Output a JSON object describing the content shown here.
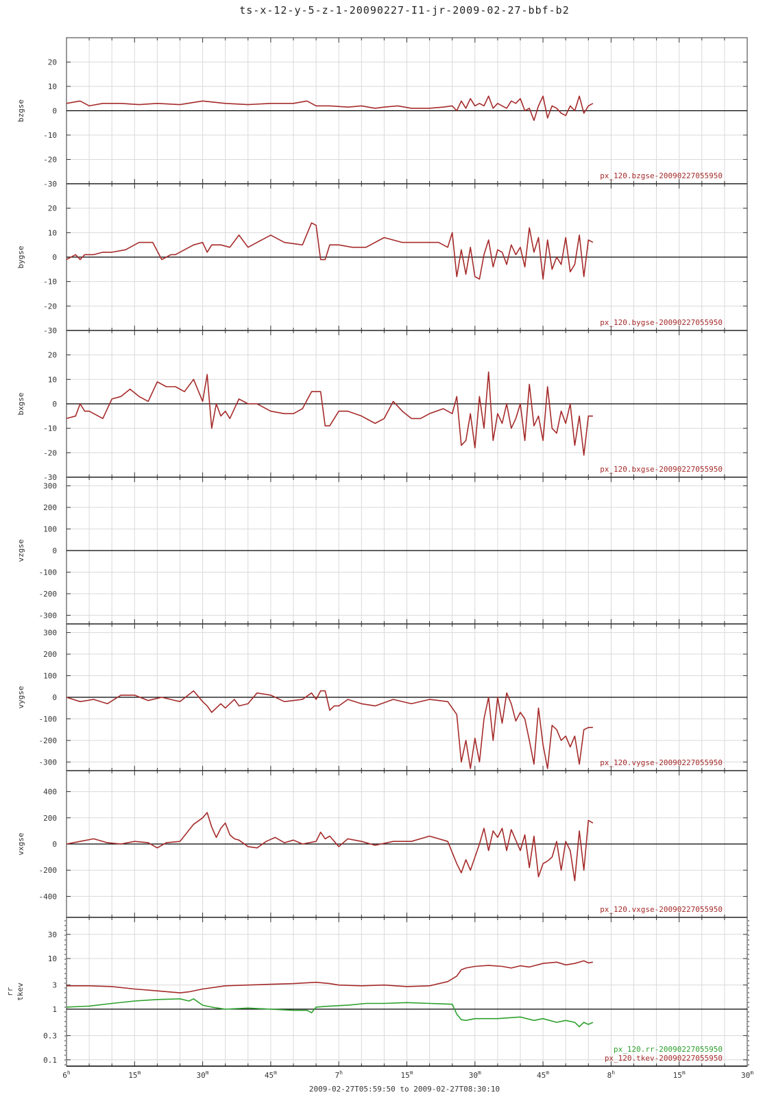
{
  "title": "ts-x-12-y-5-z-1-20090227-I1-jr-2009-02-27-bbf-b2",
  "footer": "2009-02-27T05:59:50 to 2009-02-27T08:30:10",
  "colors": {
    "series": "#a52a2a",
    "series_alt": "#2ca02c",
    "grid": "#d9d9d9"
  },
  "chart_data": [
    {
      "type": "line",
      "ylabel": "bzgse",
      "ylim": [
        -30,
        30
      ],
      "yticks": [
        "20",
        "10",
        "0",
        "-10",
        "-20",
        "-30"
      ],
      "ytick_values": [
        20,
        10,
        0,
        -10,
        -20,
        -30
      ],
      "labels": [
        {
          "text": "px_120.bzgse-20090227055950",
          "color": "#a52a2a"
        }
      ],
      "series": [
        {
          "name": "px_120.bzgse-20090227055950",
          "color": "#a52a2a",
          "x": [
            0,
            3,
            5,
            8,
            12,
            16,
            20,
            25,
            30,
            35,
            40,
            45,
            50,
            53,
            55,
            58,
            62,
            65,
            68,
            70,
            73,
            76,
            80,
            83,
            85,
            86,
            87,
            88,
            89,
            90,
            91,
            92,
            93,
            94,
            95,
            96,
            97,
            98,
            99,
            100,
            101,
            102,
            103,
            104,
            105,
            106,
            107,
            108,
            109,
            110,
            111,
            112,
            113,
            114,
            115,
            116
          ],
          "y": [
            3,
            4,
            2,
            3,
            3,
            2.5,
            3,
            2.5,
            4,
            3,
            2.5,
            3,
            3,
            4,
            2,
            2,
            1.5,
            2,
            1,
            1.5,
            2,
            1,
            1,
            1.5,
            2,
            0,
            4,
            1,
            5,
            2,
            3,
            2,
            6,
            1,
            3,
            2,
            1,
            4,
            3,
            5,
            0,
            1,
            -4,
            2,
            6,
            -3,
            2,
            1,
            -1,
            -2,
            2,
            0,
            6,
            -1,
            2,
            3
          ]
        }
      ]
    },
    {
      "type": "line",
      "ylabel": "bygse",
      "ylim": [
        -30,
        30
      ],
      "yticks": [
        "20",
        "10",
        "0",
        "-10",
        "-20",
        "-30"
      ],
      "ytick_values": [
        20,
        10,
        0,
        -10,
        -20,
        -30
      ],
      "labels": [
        {
          "text": "px_120.bygse-20090227055950",
          "color": "#a52a2a"
        }
      ],
      "series": [
        {
          "name": "px_120.bygse-20090227055950",
          "color": "#a52a2a",
          "x": [
            0,
            2,
            3,
            4,
            6,
            8,
            10,
            13,
            16,
            19,
            21,
            22,
            23,
            24,
            26,
            28,
            30,
            31,
            32,
            34,
            36,
            38,
            40,
            42,
            45,
            48,
            52,
            54,
            55,
            56,
            57,
            58,
            60,
            63,
            66,
            70,
            74,
            78,
            82,
            84,
            85,
            86,
            87,
            88,
            89,
            90,
            91,
            92,
            93,
            94,
            95,
            96,
            97,
            98,
            99,
            100,
            101,
            102,
            103,
            104,
            105,
            106,
            107,
            108,
            109,
            110,
            111,
            112,
            113,
            114,
            115,
            116
          ],
          "y": [
            -1,
            1,
            -1,
            1,
            1,
            2,
            2,
            3,
            6,
            6,
            -1,
            0,
            1,
            1,
            3,
            5,
            6,
            2,
            5,
            5,
            4,
            9,
            4,
            6,
            9,
            6,
            5,
            14,
            13,
            -1,
            -1,
            5,
            5,
            4,
            4,
            8,
            6,
            6,
            6,
            4,
            10,
            -8,
            3,
            -7,
            4,
            -8,
            -9,
            1,
            7,
            -4,
            3,
            2,
            -3,
            5,
            1,
            4,
            -4,
            12,
            2,
            8,
            -9,
            7,
            -5,
            0,
            -3,
            8,
            -6,
            -3,
            9,
            -8,
            7,
            6
          ]
        }
      ]
    },
    {
      "type": "line",
      "ylabel": "bxgse",
      "ylim": [
        -30,
        30
      ],
      "yticks": [
        "20",
        "10",
        "0",
        "-10",
        "-20",
        "-30"
      ],
      "ytick_values": [
        20,
        10,
        0,
        -10,
        -20,
        -30
      ],
      "labels": [
        {
          "text": "px_120.bxgse-20090227055950",
          "color": "#a52a2a"
        }
      ],
      "series": [
        {
          "name": "px_120.bxgse-20090227055950",
          "color": "#a52a2a",
          "x": [
            0,
            2,
            3,
            4,
            5,
            7,
            8,
            10,
            12,
            14,
            16,
            18,
            20,
            22,
            24,
            26,
            28,
            30,
            31,
            32,
            33,
            34,
            35,
            36,
            37,
            38,
            40,
            42,
            45,
            48,
            50,
            52,
            54,
            56,
            57,
            58,
            60,
            62,
            65,
            68,
            70,
            72,
            74,
            76,
            78,
            80,
            83,
            85,
            86,
            87,
            88,
            89,
            90,
            91,
            92,
            93,
            94,
            95,
            96,
            97,
            98,
            99,
            100,
            101,
            102,
            103,
            104,
            105,
            106,
            107,
            108,
            109,
            110,
            111,
            112,
            113,
            114,
            115,
            116
          ],
          "y": [
            -6,
            -5,
            0,
            -3,
            -3,
            -5,
            -6,
            2,
            3,
            6,
            3,
            1,
            9,
            7,
            7,
            5,
            10,
            1,
            12,
            -10,
            0,
            -5,
            -3,
            -6,
            -2,
            2,
            0,
            0,
            -3,
            -4,
            -4,
            -2,
            5,
            5,
            -9,
            -9,
            -3,
            -3,
            -5,
            -8,
            -6,
            1,
            -3,
            -6,
            -6,
            -4,
            -2,
            -4,
            3,
            -17,
            -15,
            -4,
            -18,
            3,
            -10,
            13,
            -15,
            -4,
            -8,
            0,
            -10,
            -6,
            0,
            -15,
            8,
            -9,
            -5,
            -15,
            7,
            -10,
            -12,
            -3,
            -8,
            0,
            -17,
            -5,
            -21,
            -5,
            -5
          ]
        }
      ]
    },
    {
      "type": "line",
      "ylabel": "vzgse",
      "ylim": [
        -340,
        340
      ],
      "yticks": [
        "300",
        "200",
        "100",
        "0",
        "-100",
        "-200",
        "-300"
      ],
      "ytick_values": [
        300,
        200,
        100,
        0,
        -100,
        -200,
        -300
      ],
      "labels": [],
      "series": []
    },
    {
      "type": "line",
      "ylabel": "vygse",
      "ylim": [
        -340,
        340
      ],
      "yticks": [
        "300",
        "200",
        "100",
        "0",
        "-100",
        "-200",
        "-300"
      ],
      "ytick_values": [
        300,
        200,
        100,
        0,
        -100,
        -200,
        -300
      ],
      "labels": [
        {
          "text": "px_120.vygse-20090227055950",
          "color": "#a52a2a"
        }
      ],
      "series": [
        {
          "name": "px_120.vygse-20090227055950",
          "color": "#a52a2a",
          "x": [
            0,
            3,
            6,
            9,
            12,
            15,
            18,
            21,
            25,
            28,
            30,
            31,
            32,
            34,
            35,
            37,
            38,
            40,
            42,
            45,
            48,
            52,
            54,
            55,
            56,
            57,
            58,
            59,
            60,
            62,
            65,
            68,
            72,
            76,
            80,
            84,
            86,
            87,
            88,
            89,
            90,
            91,
            92,
            93,
            94,
            95,
            96,
            97,
            98,
            99,
            100,
            101,
            102,
            103,
            104,
            105,
            106,
            107,
            108,
            109,
            110,
            111,
            112,
            113,
            114,
            115,
            116
          ],
          "y": [
            0,
            -20,
            -10,
            -30,
            10,
            10,
            -15,
            0,
            -20,
            30,
            -20,
            -40,
            -70,
            -30,
            -50,
            -10,
            -40,
            -30,
            20,
            10,
            -20,
            -10,
            20,
            -10,
            30,
            30,
            -60,
            -40,
            -40,
            -10,
            -30,
            -40,
            -10,
            -30,
            -10,
            -20,
            -80,
            -300,
            -200,
            -330,
            -190,
            -300,
            -100,
            0,
            -200,
            0,
            -120,
            20,
            -30,
            -110,
            -70,
            -100,
            -200,
            -310,
            -50,
            -220,
            -330,
            -130,
            -150,
            -200,
            -180,
            -230,
            -180,
            -310,
            -150,
            -140,
            -140
          ]
        }
      ]
    },
    {
      "type": "line",
      "ylabel": "vxgse",
      "ylim": [
        -560,
        560
      ],
      "yticks": [
        "400",
        "200",
        "0",
        "-200",
        "-400"
      ],
      "ytick_values": [
        400,
        200,
        0,
        -200,
        -400
      ],
      "labels": [
        {
          "text": "px_120.vxgse-20090227055950",
          "color": "#a52a2a"
        }
      ],
      "series": [
        {
          "name": "px_120.vxgse-20090227055950",
          "color": "#a52a2a",
          "x": [
            0,
            3,
            6,
            9,
            12,
            15,
            18,
            20,
            22,
            25,
            28,
            30,
            31,
            32,
            33,
            34,
            35,
            36,
            37,
            38,
            40,
            42,
            44,
            46,
            48,
            50,
            52,
            55,
            56,
            57,
            58,
            60,
            62,
            65,
            68,
            72,
            76,
            80,
            84,
            86,
            87,
            88,
            89,
            90,
            91,
            92,
            93,
            94,
            95,
            96,
            97,
            98,
            99,
            100,
            101,
            102,
            103,
            104,
            105,
            106,
            107,
            108,
            109,
            110,
            111,
            112,
            113,
            114,
            115,
            116
          ],
          "y": [
            0,
            20,
            40,
            10,
            0,
            20,
            10,
            -30,
            10,
            20,
            150,
            200,
            240,
            130,
            50,
            120,
            160,
            70,
            40,
            30,
            -20,
            -30,
            20,
            50,
            10,
            30,
            0,
            20,
            90,
            40,
            60,
            -20,
            40,
            20,
            -10,
            20,
            20,
            60,
            20,
            -150,
            -220,
            -120,
            -200,
            -100,
            0,
            120,
            -50,
            100,
            50,
            120,
            -50,
            110,
            30,
            -50,
            70,
            -180,
            60,
            -250,
            -150,
            -130,
            -100,
            20,
            -200,
            20,
            -50,
            -280,
            100,
            -200,
            180,
            160
          ]
        }
      ]
    },
    {
      "type": "line",
      "ylabel": "rr",
      "ylabel2": "tkev",
      "yscale": "log",
      "ylim": [
        0.075,
        65
      ],
      "yticks": [
        "30",
        "10",
        "3",
        "1",
        "0.3",
        "0.1"
      ],
      "ytick_values": [
        30,
        10,
        3,
        1,
        0.3,
        0.1
      ],
      "labels": [
        {
          "text": "px_120.rr-20090227055950",
          "color": "#2ca02c"
        },
        {
          "text": "px_120.tkev-20090227055950",
          "color": "#a52a2a"
        }
      ],
      "series": [
        {
          "name": "px_120.tkev-20090227055950",
          "color": "#a52a2a",
          "x": [
            0,
            5,
            10,
            15,
            20,
            25,
            27,
            30,
            35,
            40,
            45,
            50,
            55,
            58,
            60,
            65,
            70,
            75,
            80,
            84,
            86,
            87,
            88,
            90,
            93,
            96,
            98,
            100,
            102,
            105,
            108,
            110,
            112,
            114,
            115,
            116
          ],
          "y": [
            2.9,
            2.9,
            2.8,
            2.5,
            2.3,
            2.1,
            2.2,
            2.5,
            2.9,
            3.0,
            3.1,
            3.2,
            3.4,
            3.2,
            3.0,
            2.9,
            3.0,
            2.8,
            2.9,
            3.5,
            4.5,
            6.0,
            6.5,
            7.0,
            7.3,
            7.0,
            6.5,
            7.2,
            6.8,
            8.0,
            8.5,
            7.5,
            8.0,
            9.0,
            8.2,
            8.5
          ]
        },
        {
          "name": "px_120.rr-20090227055950",
          "color": "#2ca02c",
          "x": [
            0,
            5,
            10,
            15,
            20,
            25,
            27,
            28,
            30,
            32,
            35,
            40,
            45,
            50,
            53,
            54,
            55,
            58,
            62,
            66,
            70,
            75,
            80,
            85,
            86,
            87,
            88,
            90,
            95,
            100,
            103,
            105,
            108,
            110,
            112,
            113,
            114,
            115,
            116
          ],
          "y": [
            1.1,
            1.15,
            1.3,
            1.45,
            1.55,
            1.6,
            1.45,
            1.6,
            1.2,
            1.1,
            1.0,
            1.05,
            1.0,
            0.95,
            0.95,
            0.85,
            1.1,
            1.15,
            1.2,
            1.3,
            1.3,
            1.35,
            1.3,
            1.25,
            0.8,
            0.62,
            0.6,
            0.65,
            0.65,
            0.7,
            0.6,
            0.65,
            0.55,
            0.6,
            0.55,
            0.45,
            0.55,
            0.5,
            0.55
          ]
        }
      ]
    }
  ],
  "xaxis": {
    "tick_labels": [
      {
        "t": 0,
        "main": "6",
        "sup": "h"
      },
      {
        "t": 15,
        "main": "15",
        "sup": "m"
      },
      {
        "t": 30,
        "main": "30",
        "sup": "m"
      },
      {
        "t": 45,
        "main": "45",
        "sup": "m"
      },
      {
        "t": 60,
        "main": "7",
        "sup": "h"
      },
      {
        "t": 75,
        "main": "15",
        "sup": "m"
      },
      {
        "t": 90,
        "main": "30",
        "sup": "m"
      },
      {
        "t": 105,
        "main": "45",
        "sup": "m"
      },
      {
        "t": 120,
        "main": "8",
        "sup": "h"
      },
      {
        "t": 135,
        "main": "15",
        "sup": "m"
      },
      {
        "t": 150,
        "main": "30",
        "sup": "m"
      }
    ],
    "range_minutes": [
      0,
      150
    ]
  }
}
